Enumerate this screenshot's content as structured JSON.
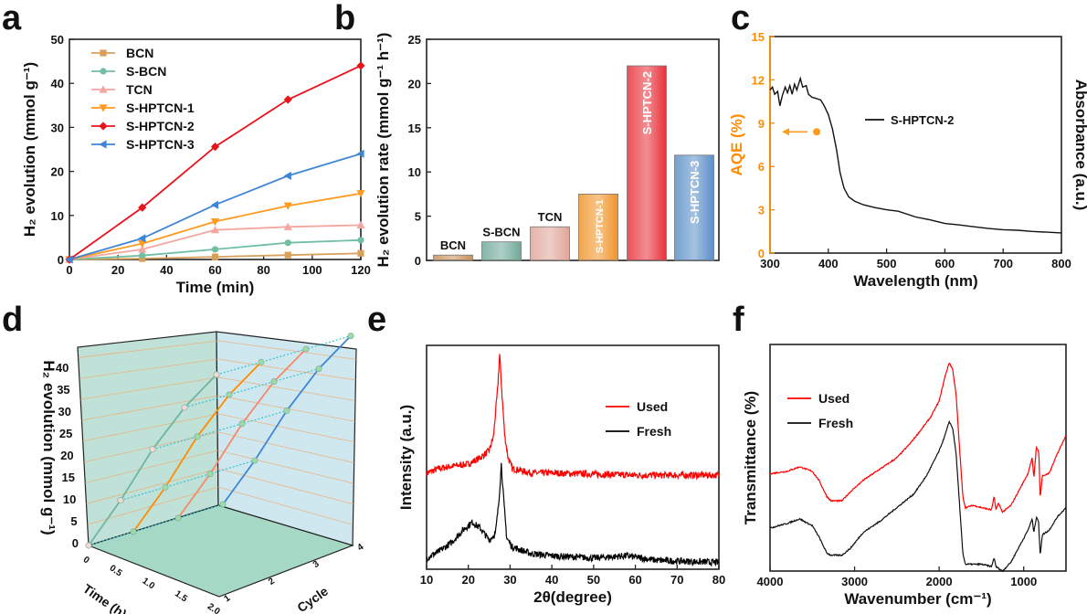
{
  "panel_labels": {
    "a": "a",
    "b": "b",
    "c": "c",
    "d": "d",
    "e": "e",
    "f": "f"
  },
  "chart_data": [
    {
      "panel": "a",
      "type": "line",
      "xlabel": "Time (min)",
      "ylabel": "H₂ evolution (mmol g⁻¹)",
      "xlim": [
        0,
        120
      ],
      "ylim": [
        0,
        50
      ],
      "xticks": [
        0,
        20,
        40,
        60,
        80,
        100,
        120
      ],
      "yticks": [
        0,
        10,
        20,
        30,
        40,
        50
      ],
      "legend": "top-left",
      "grid": false,
      "x": [
        0,
        30,
        60,
        90,
        120
      ],
      "series": [
        {
          "name": "BCN",
          "color": "#d9a05b",
          "marker": "square",
          "values": [
            0,
            0.2,
            0.6,
            1.0,
            1.4
          ]
        },
        {
          "name": "S-BCN",
          "color": "#6fbfa0",
          "marker": "circle",
          "values": [
            0,
            0.9,
            2.3,
            3.8,
            4.4
          ]
        },
        {
          "name": "TCN",
          "color": "#f4a6a0",
          "marker": "triangle-up",
          "values": [
            0,
            2.3,
            6.7,
            7.4,
            7.8
          ]
        },
        {
          "name": "S-HPTCN-1",
          "color": "#ff9a1f",
          "marker": "triangle-down",
          "values": [
            0,
            3.6,
            8.6,
            12.2,
            15.0
          ]
        },
        {
          "name": "S-HPTCN-2",
          "color": "#e8141c",
          "marker": "diamond",
          "values": [
            0,
            11.8,
            25.6,
            36.3,
            44.0
          ]
        },
        {
          "name": "S-HPTCN-3",
          "color": "#3f86d6",
          "marker": "triangle-left",
          "values": [
            0,
            4.8,
            12.4,
            19.0,
            24.0
          ]
        }
      ]
    },
    {
      "panel": "b",
      "type": "bar",
      "ylabel": "H₂ evolution rate (mmol g⁻¹ h⁻¹)",
      "ylim": [
        0,
        25
      ],
      "yticks": [
        0,
        5,
        10,
        15,
        20,
        25
      ],
      "grid": false,
      "categories": [
        "BCN",
        "S-BCN",
        "TCN",
        "S-HPTCN-1",
        "S-HPTCN-2",
        "S-HPTCN-3"
      ],
      "values": [
        0.6,
        2.1,
        3.8,
        7.5,
        22.0,
        11.9
      ],
      "colors": [
        "#c8915a",
        "#6fa898",
        "#e0a59a",
        "#f0942a",
        "#e8303a",
        "#5b8fc8"
      ]
    },
    {
      "panel": "c",
      "type": "line",
      "xlabel": "Wavelength (nm)",
      "ylabel": "AQE (%)",
      "ylabel_right": "Absorbance (a.u.)",
      "xlim": [
        300,
        800
      ],
      "ylim": [
        0,
        15
      ],
      "xticks": [
        300,
        400,
        500,
        600,
        700,
        800
      ],
      "yticks": [
        0,
        3,
        6,
        9,
        12,
        15
      ],
      "left_axis_color": "#ff8c00",
      "legend": "center",
      "series": [
        {
          "name": "S-HPTCN-2",
          "color": "#111111",
          "points": [
            [
              300,
              11.3
            ],
            [
              304,
              11.5
            ],
            [
              308,
              11.0
            ],
            [
              313,
              11.2
            ],
            [
              317,
              10.2
            ],
            [
              321,
              10.9
            ],
            [
              326,
              11.5
            ],
            [
              330,
              11.1
            ],
            [
              334,
              11.6
            ],
            [
              338,
              11.0
            ],
            [
              342,
              11.7
            ],
            [
              346,
              11.3
            ],
            [
              352,
              12.1
            ],
            [
              356,
              11.5
            ],
            [
              362,
              11.6
            ],
            [
              366,
              11.0
            ],
            [
              372,
              10.8
            ],
            [
              380,
              10.7
            ],
            [
              387,
              10.6
            ],
            [
              393,
              10.2
            ],
            [
              400,
              9.6
            ],
            [
              407,
              8.6
            ],
            [
              414,
              7.2
            ],
            [
              420,
              5.6
            ],
            [
              427,
              4.5
            ],
            [
              435,
              3.9
            ],
            [
              445,
              3.6
            ],
            [
              460,
              3.35
            ],
            [
              480,
              3.15
            ],
            [
              500,
              3.0
            ],
            [
              520,
              2.9
            ],
            [
              550,
              2.5
            ],
            [
              575,
              2.3
            ],
            [
              600,
              2.05
            ],
            [
              625,
              1.95
            ],
            [
              650,
              1.82
            ],
            [
              675,
              1.7
            ],
            [
              700,
              1.62
            ],
            [
              725,
              1.58
            ],
            [
              750,
              1.5
            ],
            [
              775,
              1.45
            ],
            [
              800,
              1.4
            ]
          ]
        }
      ],
      "aqe_points": [
        {
          "x": 380,
          "y": 8.4,
          "color": "#ff9a1f"
        }
      ]
    },
    {
      "panel": "d",
      "type": "line3d",
      "zlabel": "H₂ evolution (mmol g⁻¹)",
      "xlabel": "Time (h)",
      "ylabel": "Cycle",
      "zticks": [
        0,
        5,
        10,
        15,
        20,
        25,
        30,
        35,
        40
      ],
      "xticks": [
        "0",
        "0.5",
        "1.0",
        "1.5",
        "2.0"
      ],
      "yticks": [
        "1",
        "2",
        "3",
        "4"
      ],
      "time": [
        0,
        0.5,
        1.0,
        1.5,
        2.0
      ],
      "series": [
        {
          "cycle": 1,
          "color": "#6fb5a0",
          "values": [
            0,
            11.8,
            25.6,
            36.3,
            44.0
          ]
        },
        {
          "cycle": 2,
          "color": "#ff8c00",
          "values": [
            0,
            11.6,
            25.3,
            36.0,
            43.6
          ]
        },
        {
          "cycle": 3,
          "color": "#f58a6a",
          "values": [
            0,
            11.5,
            25.0,
            35.8,
            43.4
          ]
        },
        {
          "cycle": 4,
          "color": "#3f86d6",
          "values": [
            0,
            11.4,
            24.8,
            35.5,
            43.2
          ]
        }
      ]
    },
    {
      "panel": "e",
      "type": "line",
      "xlabel": "2θ(degree)",
      "ylabel": "Intensity (a.u.)",
      "xlim": [
        10,
        80
      ],
      "ylim": [
        0,
        1
      ],
      "xticks": [
        10,
        20,
        30,
        40,
        50,
        60,
        70,
        80
      ],
      "legend": "top-right",
      "series": [
        {
          "name": "Used",
          "color": "#ff0000",
          "points": [
            [
              10,
              0.43
            ],
            [
              13,
              0.45
            ],
            [
              16,
              0.46
            ],
            [
              20,
              0.47
            ],
            [
              23,
              0.5
            ],
            [
              25,
              0.53
            ],
            [
              26,
              0.59
            ],
            [
              27,
              0.8
            ],
            [
              27.5,
              0.96
            ],
            [
              28,
              0.8
            ],
            [
              28.7,
              0.6
            ],
            [
              29.5,
              0.5
            ],
            [
              30.5,
              0.45
            ],
            [
              35,
              0.43
            ],
            [
              40,
              0.43
            ],
            [
              60,
              0.42
            ],
            [
              80,
              0.42
            ]
          ]
        },
        {
          "name": "Fresh",
          "color": "#000000",
          "points": [
            [
              10,
              0.05
            ],
            [
              13,
              0.08
            ],
            [
              16,
              0.12
            ],
            [
              19,
              0.18
            ],
            [
              21,
              0.21
            ],
            [
              23,
              0.18
            ],
            [
              25,
              0.13
            ],
            [
              26.5,
              0.16
            ],
            [
              27.3,
              0.3
            ],
            [
              27.9,
              0.47
            ],
            [
              28.5,
              0.3
            ],
            [
              29.2,
              0.14
            ],
            [
              30.5,
              0.1
            ],
            [
              35,
              0.07
            ],
            [
              40,
              0.06
            ],
            [
              50,
              0.05
            ],
            [
              58,
              0.06
            ],
            [
              65,
              0.04
            ],
            [
              80,
              0.03
            ]
          ]
        }
      ]
    },
    {
      "panel": "f",
      "type": "line",
      "xlabel": "Wavenumber (cm⁻¹)",
      "ylabel": "Transmittance (%)",
      "xlim": [
        4000,
        500
      ],
      "ylim": [
        0,
        1
      ],
      "xticks": [
        4000,
        3000,
        2000,
        1000
      ],
      "legend": "top-left",
      "series": [
        {
          "name": "Used",
          "color": "#ff0000",
          "points": [
            [
              4000,
              0.43
            ],
            [
              3800,
              0.44
            ],
            [
              3650,
              0.46
            ],
            [
              3500,
              0.44
            ],
            [
              3420,
              0.4
            ],
            [
              3330,
              0.33
            ],
            [
              3280,
              0.31
            ],
            [
              3150,
              0.31
            ],
            [
              3050,
              0.35
            ],
            [
              2900,
              0.4
            ],
            [
              2700,
              0.45
            ],
            [
              2500,
              0.5
            ],
            [
              2350,
              0.56
            ],
            [
              2200,
              0.63
            ],
            [
              2100,
              0.68
            ],
            [
              2000,
              0.75
            ],
            [
              1930,
              0.86
            ],
            [
              1880,
              0.92
            ],
            [
              1840,
              0.89
            ],
            [
              1800,
              0.78
            ],
            [
              1760,
              0.55
            ],
            [
              1720,
              0.33
            ],
            [
              1690,
              0.28
            ],
            [
              1600,
              0.29
            ],
            [
              1500,
              0.28
            ],
            [
              1380,
              0.27
            ],
            [
              1350,
              0.33
            ],
            [
              1330,
              0.27
            ],
            [
              1300,
              0.3
            ],
            [
              1250,
              0.26
            ],
            [
              1150,
              0.29
            ],
            [
              1050,
              0.36
            ],
            [
              950,
              0.43
            ],
            [
              900,
              0.5
            ],
            [
              880,
              0.41
            ],
            [
              850,
              0.55
            ],
            [
              820,
              0.52
            ],
            [
              805,
              0.32
            ],
            [
              780,
              0.42
            ],
            [
              700,
              0.43
            ],
            [
              600,
              0.52
            ],
            [
              500,
              0.6
            ]
          ]
        },
        {
          "name": "Fresh",
          "color": "#111111",
          "points": [
            [
              4000,
              0.19
            ],
            [
              3800,
              0.21
            ],
            [
              3650,
              0.23
            ],
            [
              3500,
              0.2
            ],
            [
              3420,
              0.15
            ],
            [
              3330,
              0.08
            ],
            [
              3280,
              0.07
            ],
            [
              3150,
              0.07
            ],
            [
              3050,
              0.1
            ],
            [
              2900,
              0.17
            ],
            [
              2700,
              0.22
            ],
            [
              2500,
              0.28
            ],
            [
              2300,
              0.34
            ],
            [
              2150,
              0.42
            ],
            [
              2000,
              0.53
            ],
            [
              1930,
              0.6
            ],
            [
              1880,
              0.66
            ],
            [
              1840,
              0.63
            ],
            [
              1800,
              0.52
            ],
            [
              1760,
              0.3
            ],
            [
              1720,
              0.08
            ],
            [
              1690,
              0.03
            ],
            [
              1600,
              0.03
            ],
            [
              1500,
              0.03
            ],
            [
              1380,
              0.02
            ],
            [
              1350,
              0.06
            ],
            [
              1330,
              0.02
            ],
            [
              1250,
              0.0
            ],
            [
              1150,
              0.04
            ],
            [
              1050,
              0.11
            ],
            [
              950,
              0.18
            ],
            [
              900,
              0.23
            ],
            [
              880,
              0.17
            ],
            [
              850,
              0.24
            ],
            [
              825,
              0.22
            ],
            [
              805,
              0.07
            ],
            [
              780,
              0.16
            ],
            [
              700,
              0.18
            ],
            [
              600,
              0.24
            ],
            [
              500,
              0.28
            ]
          ]
        }
      ]
    }
  ]
}
